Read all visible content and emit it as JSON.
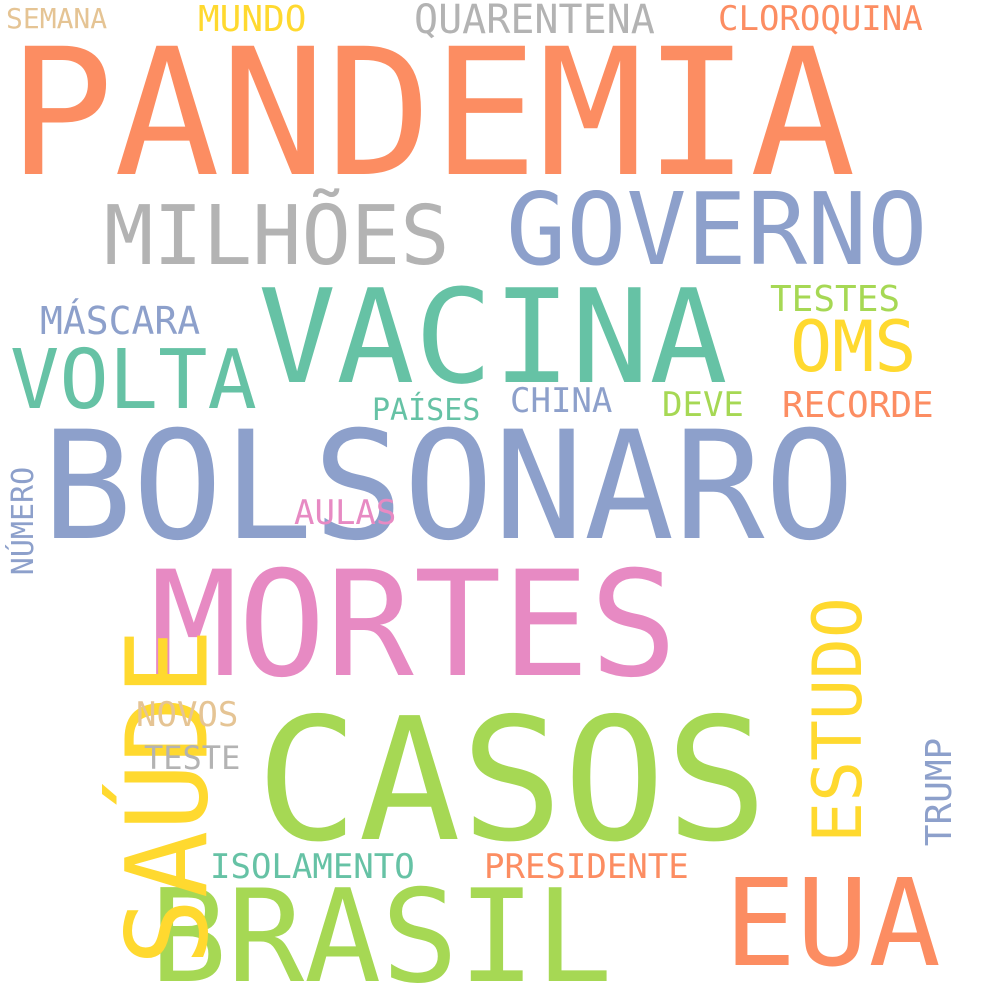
{
  "colors": {
    "orange": "#fc8d62",
    "blue": "#8da0cb",
    "teal": "#66c2a5",
    "pink": "#e78ac3",
    "green": "#a6d854",
    "yellow": "#ffd92f",
    "tan": "#e5c494",
    "gray": "#b3b3b3",
    "background": "#ffffff"
  },
  "words": [
    {
      "text": "PANDEMIA",
      "color": "#fc8d62"
    },
    {
      "text": "BOLSONARO",
      "color": "#8da0cb"
    },
    {
      "text": "CASOS",
      "color": "#a6d854"
    },
    {
      "text": "MORTES",
      "color": "#e78ac3"
    },
    {
      "text": "VACINA",
      "color": "#66c2a5"
    },
    {
      "text": "BRASIL",
      "color": "#a6d854"
    },
    {
      "text": "GOVERNO",
      "color": "#8da0cb"
    },
    {
      "text": "MILHÕES",
      "color": "#b3b3b3"
    },
    {
      "text": "SAÚDE",
      "color": "#ffd92f"
    },
    {
      "text": "EUA",
      "color": "#fc8d62"
    },
    {
      "text": "VOLTA",
      "color": "#66c2a5"
    },
    {
      "text": "OMS",
      "color": "#ffd92f"
    },
    {
      "text": "ESTUDO",
      "color": "#ffd92f"
    },
    {
      "text": "QUARENTENA",
      "color": "#b3b3b3"
    },
    {
      "text": "CLOROQUINA",
      "color": "#fc8d62"
    },
    {
      "text": "MÁSCARA",
      "color": "#8da0cb"
    },
    {
      "text": "TESTES",
      "color": "#a6d854"
    },
    {
      "text": "RECORDE",
      "color": "#fc8d62"
    },
    {
      "text": "MUNDO",
      "color": "#ffd92f"
    },
    {
      "text": "SEMANA",
      "color": "#e5c494"
    },
    {
      "text": "CHINA",
      "color": "#8da0cb"
    },
    {
      "text": "DEVE",
      "color": "#a6d854"
    },
    {
      "text": "PAÍSES",
      "color": "#66c2a5"
    },
    {
      "text": "AULAS",
      "color": "#e78ac3"
    },
    {
      "text": "NÚMERO",
      "color": "#8da0cb"
    },
    {
      "text": "NOVOS",
      "color": "#e5c494"
    },
    {
      "text": "TESTE",
      "color": "#b3b3b3"
    },
    {
      "text": "ISOLAMENTO",
      "color": "#66c2a5"
    },
    {
      "text": "PRESIDENTE",
      "color": "#fc8d62"
    },
    {
      "text": "TRUMP",
      "color": "#8da0cb"
    }
  ]
}
